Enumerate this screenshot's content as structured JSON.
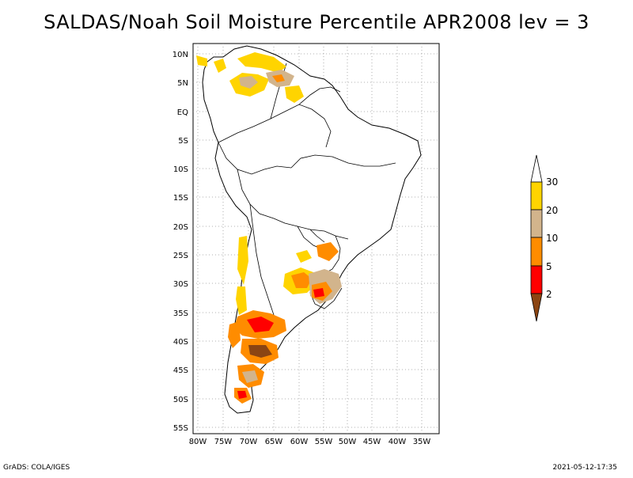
{
  "title": "SALDAS/Noah Soil Moisture Percentile APR2008 lev = 3",
  "lat_labels": [
    "10N",
    "5N",
    "EQ",
    "5S",
    "10S",
    "15S",
    "20S",
    "25S",
    "30S",
    "35S",
    "40S",
    "45S",
    "50S",
    "55S"
  ],
  "lon_labels": [
    "80W",
    "75W",
    "70W",
    "65W",
    "60W",
    "55W",
    "50W",
    "45W",
    "40W",
    "35W"
  ],
  "colorbar": {
    "labels": [
      "30",
      "20",
      "10",
      "5",
      "2"
    ],
    "colors": [
      "#ffffff",
      "#ffd400",
      "#d2b48c",
      "#ff8c00",
      "#ff0000",
      "#8b4513"
    ]
  },
  "footer": {
    "left": "GrADS: COLA/IGES",
    "right": "2021-05-12-17:35"
  }
}
